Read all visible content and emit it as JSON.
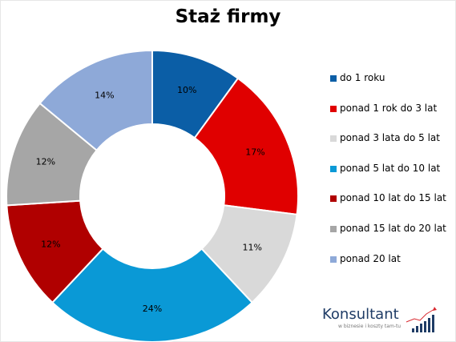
{
  "chart_data": {
    "type": "pie",
    "title": "Staż firmy",
    "categories": [
      "do 1 roku",
      "ponad 1 rok do 3 lat",
      "ponad 3 lata do 5 lat",
      "ponad 5 lat do 10 lat",
      "ponad 10 lat do 15 lat",
      "ponad 15 lat do 20 lat",
      "ponad 20 lat"
    ],
    "values": [
      10,
      17,
      11,
      24,
      12,
      12,
      14
    ],
    "data_labels": [
      "10%",
      "17%",
      "11%",
      "24%",
      "12%",
      "12%",
      "14%"
    ],
    "colors": [
      "#0b5ea6",
      "#e00000",
      "#d9d9d9",
      "#0a99d6",
      "#b00000",
      "#a6a6a6",
      "#8ea9d8"
    ],
    "legend_position": "right",
    "style": "donut"
  },
  "logo": {
    "name": "Konsultant",
    "tagline": "w biznesie i koszty tam-tu"
  }
}
